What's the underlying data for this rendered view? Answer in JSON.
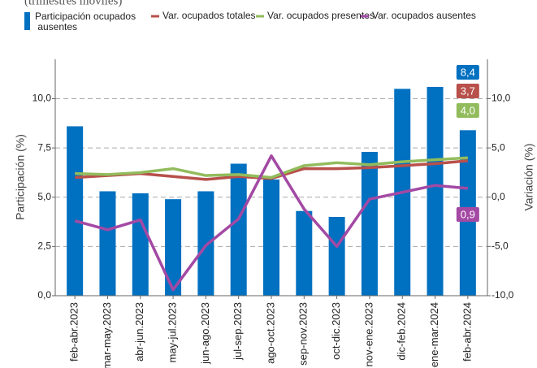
{
  "chart_data": {
    "type": "bar",
    "subtitle": "(trimestres móviles)",
    "categories": [
      "feb-abr.2023",
      "mar-may.2023",
      "abr-jun.2023",
      "may-jul.2023",
      "jun-ago.2023",
      "jul-sep.2023",
      "ago-oct.2023",
      "sep-nov.2023",
      "oct-dic.2023",
      "nov-ene.2023",
      "dic-feb.2024",
      "ene-mar.2024",
      "feb-abr.2024"
    ],
    "series": [
      {
        "name": "Participación ocupados ausentes",
        "type": "bar",
        "axis": "y",
        "color": "#0070c0",
        "values": [
          8.6,
          5.3,
          5.2,
          4.9,
          5.3,
          6.7,
          5.9,
          4.3,
          4.0,
          7.3,
          10.5,
          10.6,
          8.4
        ],
        "value_labels": [
          null,
          null,
          null,
          null,
          null,
          null,
          null,
          null,
          null,
          null,
          null,
          null,
          "8,4"
        ]
      },
      {
        "name": "Var. ocupados totales",
        "type": "line",
        "axis": "y2",
        "color": "#b8504b",
        "values": [
          2.0,
          2.2,
          2.4,
          2.1,
          1.8,
          2.1,
          1.9,
          2.9,
          2.9,
          3.0,
          3.2,
          3.4,
          3.7
        ],
        "value_labels": [
          null,
          null,
          null,
          null,
          null,
          null,
          null,
          null,
          null,
          null,
          null,
          null,
          "3,7"
        ]
      },
      {
        "name": "Var. ocupados presentes",
        "type": "line",
        "axis": "y2",
        "color": "#92bc5c",
        "values": [
          2.4,
          2.3,
          2.5,
          2.9,
          2.2,
          2.3,
          2.0,
          3.2,
          3.5,
          3.3,
          3.6,
          3.8,
          4.0
        ],
        "value_labels": [
          null,
          null,
          null,
          null,
          null,
          null,
          null,
          null,
          null,
          null,
          null,
          null,
          "4,0"
        ]
      },
      {
        "name": "Var. ocupados ausentes",
        "type": "line",
        "axis": "y2",
        "color": "#a349a4",
        "values": [
          -2.4,
          -3.3,
          -2.3,
          -9.4,
          -4.9,
          -2.2,
          4.2,
          -1.2,
          -5.0,
          -0.2,
          0.5,
          1.2,
          0.9
        ],
        "value_labels": [
          null,
          null,
          null,
          null,
          null,
          null,
          null,
          null,
          null,
          null,
          null,
          null,
          "0,9"
        ]
      }
    ],
    "ylabel": "Participación (%)",
    "y2label": "Variación (%)",
    "ylim": [
      0,
      12
    ],
    "yticks": [
      {
        "value": 0,
        "label": "0,0"
      },
      {
        "value": 2.5,
        "label": "2,5"
      },
      {
        "value": 5,
        "label": "5,0"
      },
      {
        "value": 7.5,
        "label": "7,5"
      },
      {
        "value": 10,
        "label": "10,0"
      }
    ],
    "y2lim": [
      -10,
      14
    ],
    "y2ticks": [
      {
        "value": -10,
        "label": "-10,0"
      },
      {
        "value": -5,
        "label": "-5,0"
      },
      {
        "value": 0,
        "label": "0,0"
      },
      {
        "value": 5,
        "label": "5,0"
      },
      {
        "value": 10,
        "label": "10,0"
      }
    ],
    "grid": true
  }
}
